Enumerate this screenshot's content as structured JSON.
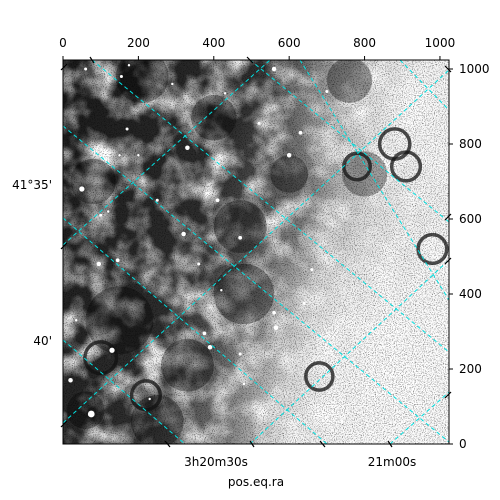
{
  "chart_data": {
    "type": "image",
    "colormap": "gray",
    "pixel_axes": {
      "x_range": [
        0,
        1024
      ],
      "y_range": [
        0,
        1024
      ],
      "x_ticks": [
        0,
        200,
        400,
        600,
        800,
        1000
      ],
      "y_ticks": [
        0,
        200,
        400,
        600,
        800,
        1000
      ]
    },
    "world_axes": {
      "xlabel": "pos.eq.ra",
      "ra_ticks": [
        {
          "hm": "3h20m",
          "s": "30s"
        },
        {
          "hm": "21m",
          "s": "00s"
        }
      ],
      "dec_ticks": [
        "41°35'",
        "40'"
      ]
    },
    "grid": {
      "color": "#00e0e0",
      "style": "dashed"
    },
    "dark_blobs": [
      {
        "x": 330,
        "y": 210,
        "r": 70
      },
      {
        "x": 480,
        "y": 400,
        "r": 80
      },
      {
        "x": 150,
        "y": 330,
        "r": 90
      },
      {
        "x": 250,
        "y": 60,
        "r": 70
      },
      {
        "x": 60,
        "y": 90,
        "r": 50
      },
      {
        "x": 210,
        "y": 980,
        "r": 70
      },
      {
        "x": 80,
        "y": 700,
        "r": 60
      },
      {
        "x": 400,
        "y": 870,
        "r": 60
      },
      {
        "x": 600,
        "y": 720,
        "r": 50
      },
      {
        "x": 800,
        "y": 720,
        "r": 60
      },
      {
        "x": 760,
        "y": 970,
        "r": 60
      },
      {
        "x": 470,
        "y": 580,
        "r": 70
      }
    ],
    "rings": [
      {
        "x": 980,
        "y": 520,
        "r": 38
      },
      {
        "x": 100,
        "y": 230,
        "r": 42
      },
      {
        "x": 220,
        "y": 130,
        "r": 38
      },
      {
        "x": 680,
        "y": 180,
        "r": 36
      },
      {
        "x": 910,
        "y": 740,
        "r": 38
      },
      {
        "x": 780,
        "y": 740,
        "r": 35
      },
      {
        "x": 880,
        "y": 800,
        "r": 40
      }
    ],
    "stars": [
      {
        "x": 130,
        "y": 250,
        "r": 7
      },
      {
        "x": 75,
        "y": 80,
        "r": 9
      },
      {
        "x": 20,
        "y": 170,
        "r": 6
      },
      {
        "x": 330,
        "y": 790,
        "r": 6
      },
      {
        "x": 50,
        "y": 680,
        "r": 7
      },
      {
        "x": 320,
        "y": 560,
        "r": 6
      },
      {
        "x": 390,
        "y": 258,
        "r": 6
      },
      {
        "x": 375,
        "y": 295,
        "r": 5
      },
      {
        "x": 470,
        "y": 550,
        "r": 5
      },
      {
        "x": 565,
        "y": 310,
        "r": 6
      },
      {
        "x": 560,
        "y": 350,
        "r": 5
      },
      {
        "x": 600,
        "y": 770,
        "r": 6
      },
      {
        "x": 630,
        "y": 830,
        "r": 5
      },
      {
        "x": 560,
        "y": 1000,
        "r": 6
      },
      {
        "x": 95,
        "y": 480,
        "r": 6
      },
      {
        "x": 145,
        "y": 490,
        "r": 5
      },
      {
        "x": 170,
        "y": 840,
        "r": 4
      },
      {
        "x": 360,
        "y": 480,
        "r": 4
      },
      {
        "x": 410,
        "y": 650,
        "r": 5
      },
      {
        "x": 250,
        "y": 650,
        "r": 4
      },
      {
        "x": 660,
        "y": 465,
        "r": 4
      },
      {
        "x": 640,
        "y": 375,
        "r": 4
      },
      {
        "x": 155,
        "y": 980,
        "r": 4
      },
      {
        "x": 100,
        "y": 610,
        "r": 4
      },
      {
        "x": 700,
        "y": 940,
        "r": 4
      },
      {
        "x": 520,
        "y": 855,
        "r": 4
      },
      {
        "x": 470,
        "y": 240,
        "r": 4
      },
      {
        "x": 420,
        "y": 410,
        "r": 3
      },
      {
        "x": 35,
        "y": 330,
        "r": 3
      },
      {
        "x": 200,
        "y": 770,
        "r": 3
      },
      {
        "x": 740,
        "y": 60,
        "r": 4
      },
      {
        "x": 650,
        "y": 145,
        "r": 4
      },
      {
        "x": 480,
        "y": 160,
        "r": 3
      },
      {
        "x": 230,
        "y": 120,
        "r": 3
      },
      {
        "x": 120,
        "y": 620,
        "r": 3
      },
      {
        "x": 430,
        "y": 935,
        "r": 3
      },
      {
        "x": 290,
        "y": 960,
        "r": 3
      },
      {
        "x": 150,
        "y": 770,
        "r": 3
      },
      {
        "x": 60,
        "y": 1000,
        "r": 4
      },
      {
        "x": 175,
        "y": 1010,
        "r": 3
      }
    ]
  }
}
